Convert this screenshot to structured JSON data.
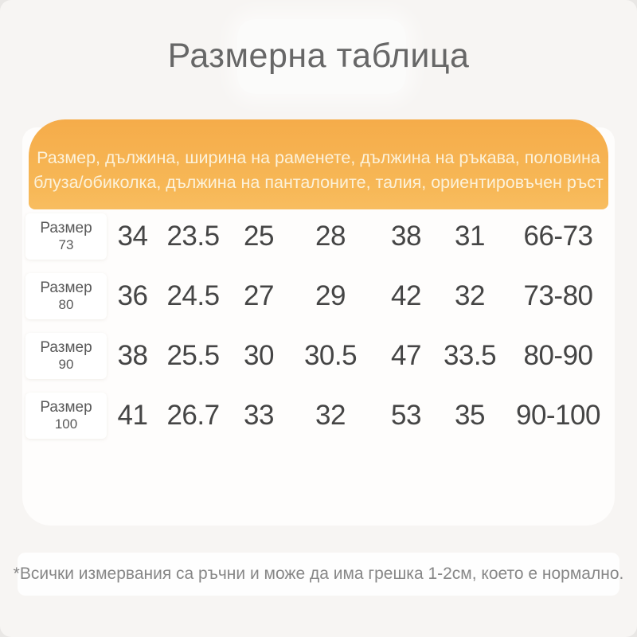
{
  "page": {
    "title": "Размерна таблица",
    "footnote": "*Всички измервания са ръчни и може да има грешка 1-2см, което е нормално."
  },
  "table": {
    "header_lines": [
      "Размер, дължина, ширина на раменете, дължина на ръкава, половина",
      "блуза/обиколка, дължина на панталоните, талия, ориентировъчен ръст"
    ],
    "size_label": "Размер",
    "rows": [
      {
        "size": "73",
        "values": [
          "34",
          "23.5",
          "25",
          "28",
          "38",
          "31",
          "66-73"
        ]
      },
      {
        "size": "80",
        "values": [
          "36",
          "24.5",
          "27",
          "29",
          "42",
          "32",
          "73-80"
        ]
      },
      {
        "size": "90",
        "values": [
          "38",
          "25.5",
          "30",
          "30.5",
          "47",
          "33.5",
          "80-90"
        ]
      },
      {
        "size": "100",
        "values": [
          "41",
          "26.7",
          "33",
          "32",
          "53",
          "35",
          "90-100"
        ]
      }
    ]
  },
  "colors": {
    "accent_orange": "#f6b150",
    "header_text": "#fcf2da",
    "page_background": "#f7f5f3",
    "panel_background": "#fefdfc",
    "number_text": "#454545",
    "title_text": "#676767",
    "footnote_text": "#878787"
  }
}
